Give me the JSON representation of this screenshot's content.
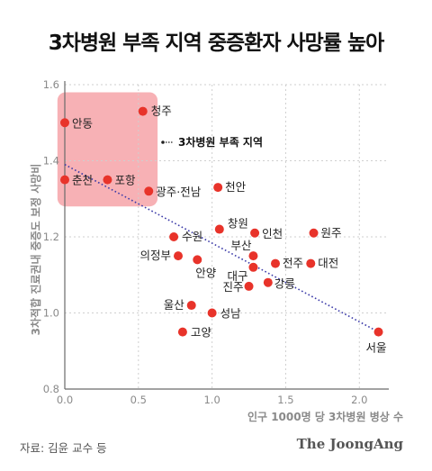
{
  "header": {
    "title": "3차병원 부족 지역 중증환자 사망률 높아"
  },
  "footer": {
    "source": "자료: 김윤 교수 등",
    "brand": "The JoongAng"
  },
  "chart_data": {
    "type": "scatter",
    "xlabel": "인구 1000명 당 3차병원 병상 수",
    "ylabel": "3차적합 진료권내 중증도 보정 사망비",
    "xlim": [
      0.0,
      2.2
    ],
    "ylim": [
      0.8,
      1.6
    ],
    "xticks": [
      0.0,
      0.5,
      1.0,
      1.5,
      2.0
    ],
    "yticks": [
      0.8,
      1.0,
      1.2,
      1.4,
      1.6
    ],
    "grid": true,
    "colors": {
      "point": "#e8332a",
      "highlight": "#f6a3a8",
      "trend": "#3b3aa8",
      "axis_text": "#8a8a8a"
    },
    "highlight_region": {
      "label": "3차병원 부족 지역",
      "x": [
        -0.05,
        0.63
      ],
      "y": [
        1.28,
        1.58
      ]
    },
    "trendline": {
      "x": [
        0.0,
        2.13
      ],
      "y": [
        1.39,
        0.95
      ]
    },
    "points": [
      {
        "label": "안동",
        "x": 0.0,
        "y": 1.5
      },
      {
        "label": "청주",
        "x": 0.53,
        "y": 1.53
      },
      {
        "label": "춘천",
        "x": 0.0,
        "y": 1.35
      },
      {
        "label": "포항",
        "x": 0.29,
        "y": 1.35
      },
      {
        "label": "광주·전남",
        "x": 0.57,
        "y": 1.32
      },
      {
        "label": "천안",
        "x": 1.04,
        "y": 1.33
      },
      {
        "label": "창원",
        "x": 1.05,
        "y": 1.22
      },
      {
        "label": "인천",
        "x": 1.29,
        "y": 1.21
      },
      {
        "label": "원주",
        "x": 1.69,
        "y": 1.21
      },
      {
        "label": "수원",
        "x": 0.74,
        "y": 1.2
      },
      {
        "label": "의정부",
        "x": 0.77,
        "y": 1.15
      },
      {
        "label": "부산",
        "x": 1.28,
        "y": 1.15
      },
      {
        "label": "안양",
        "x": 0.9,
        "y": 1.14
      },
      {
        "label": "대구",
        "x": 1.28,
        "y": 1.12
      },
      {
        "label": "전주",
        "x": 1.43,
        "y": 1.13
      },
      {
        "label": "대전",
        "x": 1.67,
        "y": 1.13
      },
      {
        "label": "진주",
        "x": 1.25,
        "y": 1.07
      },
      {
        "label": "강릉",
        "x": 1.38,
        "y": 1.08
      },
      {
        "label": "울산",
        "x": 0.86,
        "y": 1.02
      },
      {
        "label": "성남",
        "x": 1.0,
        "y": 1.0
      },
      {
        "label": "고양",
        "x": 0.8,
        "y": 0.95
      },
      {
        "label": "서울",
        "x": 2.13,
        "y": 0.95
      }
    ]
  }
}
